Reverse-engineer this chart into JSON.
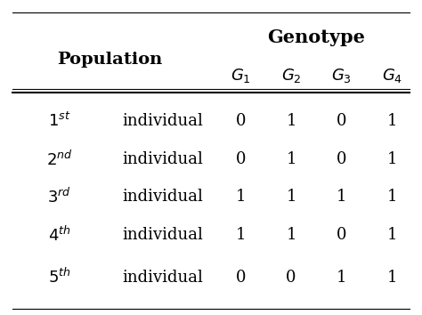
{
  "title_col1": "Population",
  "title_col2": "Genotype",
  "col_headers": [
    "$G_1$",
    "$G_2$",
    "$G_3$",
    "$G_4$"
  ],
  "superscripts": [
    "$1^{st}$",
    "$2^{nd}$",
    "$3^{rd}$",
    "$4^{th}$",
    "$5^{th}$"
  ],
  "data": [
    [
      0,
      1,
      0,
      1
    ],
    [
      0,
      1,
      0,
      1
    ],
    [
      1,
      1,
      1,
      1
    ],
    [
      1,
      1,
      0,
      1
    ],
    [
      0,
      0,
      1,
      1
    ]
  ],
  "bg_color": "#ffffff",
  "text_color": "#000000",
  "line_color": "#000000",
  "fontsize_header": 14,
  "fontsize_cell": 13
}
